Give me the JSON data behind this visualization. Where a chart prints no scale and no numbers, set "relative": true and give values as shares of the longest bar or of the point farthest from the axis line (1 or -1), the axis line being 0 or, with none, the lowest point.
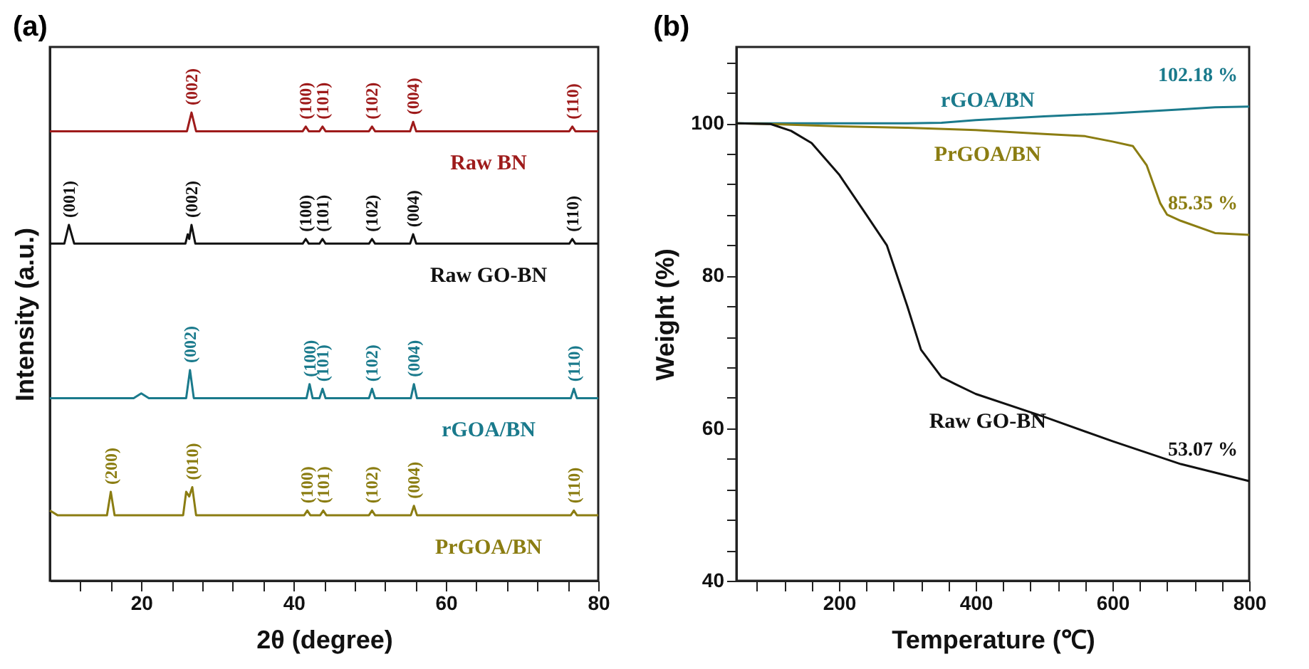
{
  "chart_data": [
    {
      "type": "line",
      "title": "(a)",
      "xlabel": "2θ  (degree)",
      "ylabel": "Intensity (a.u.)",
      "relative": true,
      "tick_labels": "x",
      "marker": "none",
      "xlim": [
        8,
        80
      ],
      "xticks": [
        {
          "value": 12,
          "label": null
        },
        {
          "value": 16,
          "label": null
        },
        20,
        {
          "value": 24,
          "label": null
        },
        {
          "value": 28,
          "label": null
        },
        {
          "value": 32,
          "label": null
        },
        {
          "value": 36,
          "label": null
        },
        40,
        {
          "value": 44,
          "label": null
        },
        {
          "value": 48,
          "label": null
        },
        {
          "value": 52,
          "label": null
        },
        {
          "value": 56,
          "label": null
        },
        60,
        {
          "value": 64,
          "label": null
        },
        {
          "value": 68,
          "label": null
        },
        {
          "value": 72,
          "label": null
        },
        {
          "value": 76,
          "label": null
        },
        80
      ],
      "series": [
        {
          "name": "Raw BN",
          "color": "#9e1b1b",
          "x": [
            8,
            26.0,
            26.6,
            27.2,
            41.2,
            41.6,
            42.0,
            43.4,
            43.8,
            44.2,
            49.9,
            50.3,
            50.7,
            55.3,
            55.7,
            56.1,
            76.2,
            76.6,
            77.0,
            80
          ],
          "values": [
            0.96,
            0.96,
            1.0,
            0.96,
            0.96,
            0.97,
            0.96,
            0.96,
            0.97,
            0.96,
            0.96,
            0.97,
            0.96,
            0.96,
            0.98,
            0.96,
            0.96,
            0.97,
            0.96,
            0.96
          ]
        },
        {
          "name": "Raw GO-BN",
          "color": "#111111",
          "x": [
            8,
            9.9,
            10.5,
            11.2,
            25.8,
            26.1,
            26.3,
            26.6,
            27.1,
            41.2,
            41.6,
            42.0,
            43.4,
            43.8,
            44.2,
            49.9,
            50.3,
            50.7,
            55.3,
            55.7,
            56.1,
            76.2,
            76.6,
            77.0,
            80
          ],
          "values": [
            0.72,
            0.72,
            0.76,
            0.72,
            0.72,
            0.74,
            0.73,
            0.76,
            0.72,
            0.72,
            0.73,
            0.72,
            0.72,
            0.73,
            0.72,
            0.72,
            0.73,
            0.72,
            0.72,
            0.74,
            0.72,
            0.72,
            0.73,
            0.72,
            0.72
          ]
        },
        {
          "name": "rGOA/BN",
          "color": "#1a7a8c",
          "x": [
            8,
            19,
            20,
            21,
            25.9,
            26.4,
            26.9,
            41.7,
            42.1,
            42.5,
            43.4,
            43.8,
            44.2,
            49.9,
            50.3,
            50.7,
            55.4,
            55.8,
            56.2,
            76.4,
            76.8,
            77.2,
            80
          ],
          "values": [
            0.39,
            0.39,
            0.4,
            0.39,
            0.39,
            0.45,
            0.39,
            0.39,
            0.42,
            0.39,
            0.39,
            0.41,
            0.39,
            0.39,
            0.41,
            0.39,
            0.39,
            0.42,
            0.39,
            0.39,
            0.41,
            0.39,
            0.39
          ]
        },
        {
          "name": "PrGOA/BN",
          "color": "#8b7d12",
          "x": [
            8,
            9,
            15.5,
            16,
            16.5,
            25.5,
            25.9,
            26.3,
            26.7,
            27.2,
            41.4,
            41.8,
            42.2,
            43.5,
            43.9,
            44.3,
            49.9,
            50.3,
            50.7,
            55.4,
            55.8,
            56.2,
            76.4,
            76.8,
            77.2,
            80
          ],
          "values": [
            0.15,
            0.14,
            0.14,
            0.19,
            0.14,
            0.14,
            0.19,
            0.18,
            0.2,
            0.14,
            0.14,
            0.15,
            0.14,
            0.14,
            0.15,
            0.14,
            0.14,
            0.15,
            0.14,
            0.14,
            0.16,
            0.14,
            0.14,
            0.15,
            0.14,
            0.14
          ]
        }
      ],
      "annotations": [
        {
          "text": "(002)",
          "x": 26.6,
          "y": 1.0
        },
        {
          "text": "(100)",
          "x": 41.6,
          "y": 0.97
        },
        {
          "text": "(101)",
          "x": 43.8,
          "y": 0.97
        },
        {
          "text": "(102)",
          "x": 50.3,
          "y": 0.97
        },
        {
          "text": "(004)",
          "x": 55.7,
          "y": 0.98
        },
        {
          "text": "(110)",
          "x": 76.6,
          "y": 0.97
        },
        {
          "text": "(001)",
          "x": 10.5,
          "y": 0.76
        },
        {
          "text": "(002)",
          "x": 26.6,
          "y": 0.76
        },
        {
          "text": "(100)",
          "x": 41.6,
          "y": 0.73
        },
        {
          "text": "(101)",
          "x": 43.8,
          "y": 0.73
        },
        {
          "text": "(102)",
          "x": 50.3,
          "y": 0.73
        },
        {
          "text": "(004)",
          "x": 55.7,
          "y": 0.74
        },
        {
          "text": "(110)",
          "x": 76.6,
          "y": 0.73
        },
        {
          "text": "(002)",
          "x": 26.4,
          "y": 0.45
        },
        {
          "text": "(100)",
          "x": 42.1,
          "y": 0.42
        },
        {
          "text": "(101)",
          "x": 43.8,
          "y": 0.41
        },
        {
          "text": "(102)",
          "x": 50.3,
          "y": 0.41
        },
        {
          "text": "(004)",
          "x": 55.8,
          "y": 0.42
        },
        {
          "text": "(110)",
          "x": 76.8,
          "y": 0.41
        },
        {
          "text": "(200)",
          "x": 16,
          "y": 0.19
        },
        {
          "text": "(010)",
          "x": 26.7,
          "y": 0.2
        },
        {
          "text": "(100)",
          "x": 41.8,
          "y": 0.15
        },
        {
          "text": "(101)",
          "x": 43.9,
          "y": 0.15
        },
        {
          "text": "(102)",
          "x": 50.3,
          "y": 0.15
        },
        {
          "text": "(004)",
          "x": 55.8,
          "y": 0.16
        },
        {
          "text": "(110)",
          "x": 76.8,
          "y": 0.15
        }
      ]
    },
    {
      "type": "line",
      "title": "(b)",
      "xlabel": "Temperature (℃)",
      "ylabel": "Weight (%)",
      "marker": "none",
      "xlim": [
        50,
        800
      ],
      "xticks": [
        {
          "value": 80,
          "label": null
        },
        {
          "value": 120,
          "label": null
        },
        {
          "value": 160,
          "label": null
        },
        200,
        {
          "value": 240,
          "label": null
        },
        {
          "value": 280,
          "label": null
        },
        {
          "value": 320,
          "label": null
        },
        {
          "value": 360,
          "label": null
        },
        400,
        {
          "value": 440,
          "label": null
        },
        {
          "value": 480,
          "label": null
        },
        {
          "value": 520,
          "label": null
        },
        {
          "value": 560,
          "label": null
        },
        600,
        {
          "value": 640,
          "label": null
        },
        {
          "value": 680,
          "label": null
        },
        {
          "value": 720,
          "label": null
        },
        {
          "value": 760,
          "label": null
        },
        800
      ],
      "ylim": [
        40,
        110
      ],
      "yticks": [
        40,
        {
          "value": 44,
          "label": null
        },
        {
          "value": 48,
          "label": null
        },
        {
          "value": 52,
          "label": null
        },
        {
          "value": 56,
          "label": null
        },
        60,
        {
          "value": 64,
          "label": null
        },
        {
          "value": 68,
          "label": null
        },
        {
          "value": 72,
          "label": null
        },
        {
          "value": 76,
          "label": null
        },
        80,
        {
          "value": 84,
          "label": null
        },
        {
          "value": 88,
          "label": null
        },
        {
          "value": 92,
          "label": null
        },
        {
          "value": 96,
          "label": null
        },
        100,
        {
          "value": 104,
          "label": null
        },
        {
          "value": 108,
          "label": null
        }
      ],
      "series": [
        {
          "name": "rGOA/BN",
          "color": "#1a7a8c",
          "x": [
            50,
            300,
            350,
            400,
            500,
            600,
            700,
            750,
            800
          ],
          "values": [
            100,
            100,
            100.05,
            100.4,
            100.9,
            101.3,
            101.8,
            102.1,
            102.18
          ],
          "value_labels": [
            null,
            null,
            null,
            null,
            null,
            null,
            null,
            null,
            "102.18 %"
          ]
        },
        {
          "name": "PrGOA/BN",
          "color": "#8b7d12",
          "x": [
            50,
            100,
            200,
            300,
            400,
            500,
            560,
            600,
            630,
            650,
            670,
            680,
            700,
            750,
            800
          ],
          "values": [
            100,
            99.9,
            99.6,
            99.4,
            99.1,
            98.6,
            98.3,
            97.6,
            97.0,
            94.5,
            89.5,
            88.0,
            87.2,
            85.6,
            85.35
          ],
          "value_labels": [
            null,
            null,
            null,
            null,
            null,
            null,
            null,
            null,
            null,
            null,
            null,
            null,
            null,
            null,
            "85.35 %"
          ]
        },
        {
          "name": "Raw GO-BN",
          "color": "#111111",
          "x": [
            50,
            100,
            130,
            160,
            200,
            240,
            270,
            300,
            320,
            350,
            370,
            400,
            500,
            600,
            700,
            800
          ],
          "values": [
            100,
            99.9,
            99.0,
            97.4,
            93.3,
            88.0,
            84.0,
            76.0,
            70.3,
            66.7,
            65.8,
            64.5,
            61.5,
            58.3,
            55.3,
            53.07
          ],
          "value_labels": [
            null,
            null,
            null,
            null,
            null,
            null,
            null,
            null,
            null,
            null,
            null,
            null,
            null,
            null,
            null,
            "53.07 %"
          ]
        }
      ]
    }
  ]
}
